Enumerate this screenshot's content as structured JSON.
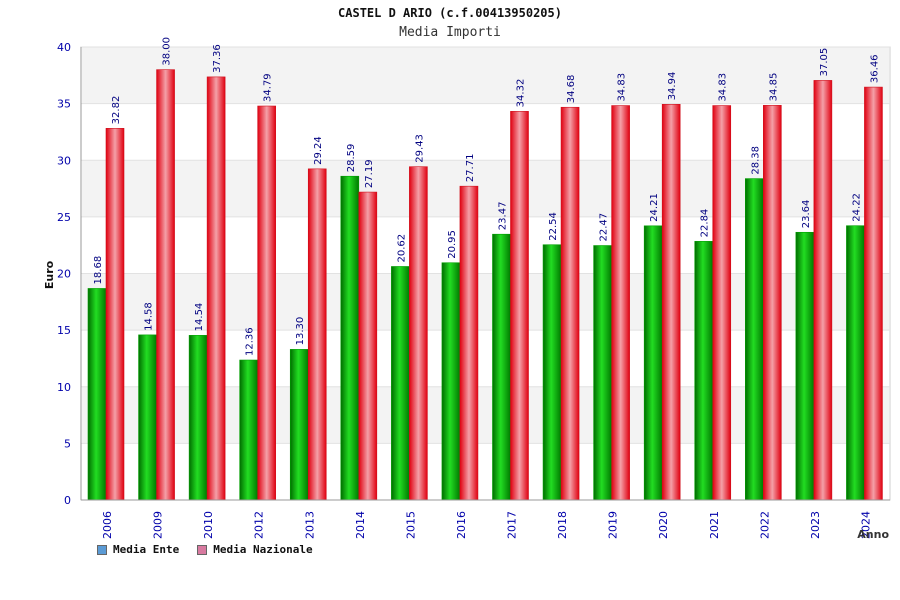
{
  "chart_data": {
    "type": "bar",
    "title": "CASTEL D ARIO (c.f.00413950205)",
    "subtitle": "Media Importi",
    "ylabel": "Euro",
    "xlabel": "Anno",
    "ylim": [
      0,
      40
    ],
    "yticks": [
      0,
      5,
      10,
      15,
      20,
      25,
      30,
      35,
      40
    ],
    "grid": true,
    "legend_position": "bottom-left",
    "categories": [
      "2006",
      "2009",
      "2010",
      "2012",
      "2013",
      "2014",
      "2015",
      "2016",
      "2017",
      "2018",
      "2019",
      "2020",
      "2021",
      "2022",
      "2023",
      "2024"
    ],
    "series": [
      {
        "name": "Media Ente",
        "color": "#00bb00",
        "legend_color": "#5b9bd5",
        "values": [
          18.68,
          14.58,
          14.54,
          12.36,
          13.3,
          28.59,
          20.62,
          20.95,
          23.47,
          22.54,
          22.47,
          24.21,
          22.84,
          28.38,
          23.64,
          24.22
        ],
        "labels": [
          "18.68",
          "14.58",
          "14.54",
          "12.36",
          "13.30",
          "28.59",
          "20.62",
          "20.95",
          "23.47",
          "22.54",
          "22.47",
          "24.21",
          "22.84",
          "28.38",
          "23.64",
          "24.22"
        ]
      },
      {
        "name": "Media Nazionale",
        "color": "#e8202a",
        "legend_color": "#d87aa0",
        "values": [
          32.82,
          38.0,
          37.36,
          34.79,
          29.24,
          27.19,
          29.43,
          27.71,
          34.32,
          34.68,
          34.83,
          34.94,
          34.83,
          34.85,
          37.05,
          36.46
        ],
        "labels": [
          "32.82",
          "38.00",
          "37.36",
          "34.79",
          "29.24",
          "27.19",
          "29.43",
          "27.71",
          "34.32",
          "34.68",
          "34.83",
          "34.94",
          "34.83",
          "34.85",
          "37.05",
          "36.46"
        ]
      }
    ]
  }
}
